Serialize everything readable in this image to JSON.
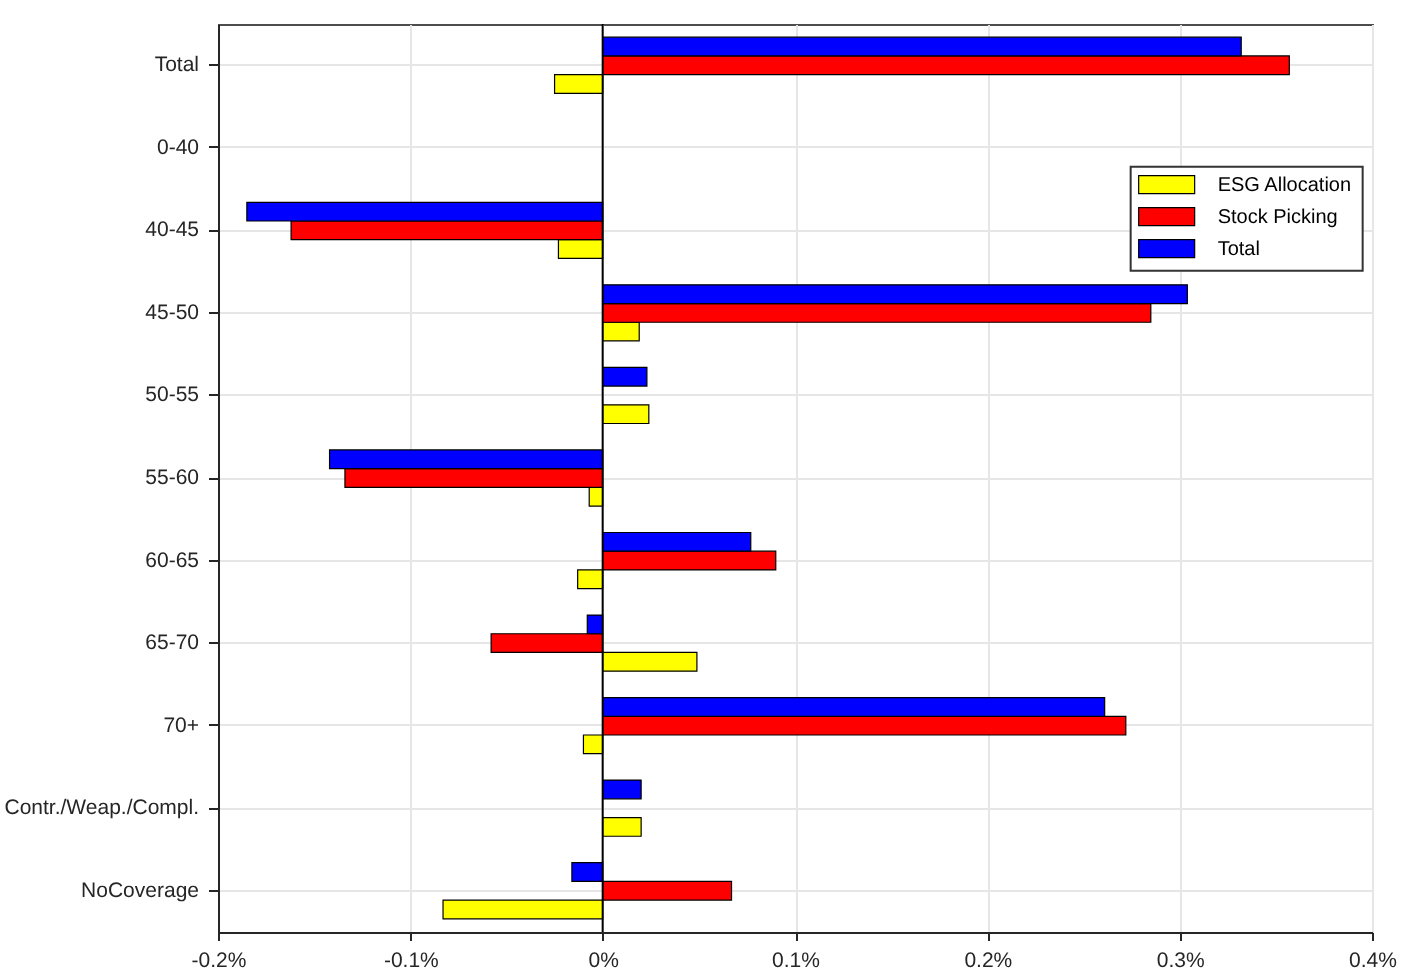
{
  "chart_data": {
    "type": "bar",
    "orientation": "horizontal",
    "categories": [
      "Total",
      "0-40",
      "40-45",
      "45-50",
      "50-55",
      "55-60",
      "60-65",
      "65-70",
      "70+",
      "Contr./Weap./Compl.",
      "NoCoverage"
    ],
    "series": [
      {
        "name": "ESG Allocation",
        "color": "#ffff00",
        "values": [
          -0.025,
          null,
          -0.023,
          0.019,
          0.024,
          -0.007,
          -0.013,
          0.049,
          -0.01,
          0.02,
          -0.083
        ]
      },
      {
        "name": "Stock Picking",
        "color": "#ff0000",
        "values": [
          0.357,
          null,
          -0.162,
          0.285,
          null,
          -0.134,
          0.09,
          -0.058,
          0.272,
          null,
          0.067
        ]
      },
      {
        "name": "Total",
        "color": "#0000ff",
        "values": [
          0.332,
          null,
          -0.185,
          0.304,
          0.023,
          -0.142,
          0.077,
          -0.008,
          0.261,
          0.02,
          -0.016
        ]
      }
    ],
    "xlim": [
      -0.2,
      0.4
    ],
    "xticks": [
      {
        "value": -0.2,
        "label": "-0.2%"
      },
      {
        "value": -0.1,
        "label": "-0.1%"
      },
      {
        "value": 0,
        "label": "0%"
      },
      {
        "value": 0.1,
        "label": "0.1%"
      },
      {
        "value": 0.2,
        "label": "0.2%"
      },
      {
        "value": 0.3,
        "label": "0.3%"
      },
      {
        "value": 0.4,
        "label": "0.4%"
      }
    ],
    "grid": true,
    "legend": "top right",
    "ref_lines": [
      {
        "axis": "x",
        "value": 0,
        "color": "#000000"
      }
    ]
  }
}
